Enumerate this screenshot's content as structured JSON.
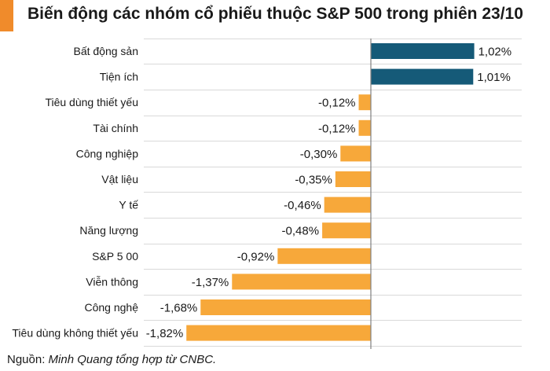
{
  "title": "Biến động các nhóm cổ phiếu thuộc S&P 500 trong phiên 23/10",
  "source_label": "Nguồn:",
  "source_text": "Minh Quang tổng hợp từ CNBC.",
  "colors": {
    "positive": "#155A78",
    "negative": "#F7A83A",
    "accent": "#F08B2B",
    "grid": "#d9d9d9",
    "axis": "#808080"
  },
  "chart_data": {
    "type": "bar",
    "orientation": "horizontal",
    "title": "Biến động các nhóm cổ phiếu thuộc S&P 500 trong phiên 23/10",
    "categories": [
      "Bất động sản",
      "Tiện ích",
      "Tiêu dùng thiết yếu",
      "Tài chính",
      "Công nghiệp",
      "Vật liệu",
      "Y tế",
      "Năng lượng",
      "S&P 5 00",
      "Viễn thông",
      "Công nghệ",
      "Tiêu dùng không thiết yếu"
    ],
    "values": [
      1.02,
      1.01,
      -0.12,
      -0.12,
      -0.3,
      -0.35,
      -0.46,
      -0.48,
      -0.92,
      -1.37,
      -1.68,
      -1.82
    ],
    "labels": [
      "1,02%",
      "1,01%",
      "-0,12%",
      "-0,12%",
      "-0,30%",
      "-0,35%",
      "-0,46%",
      "-0,48%",
      "-0,92%",
      "-1,37%",
      "-1,68%",
      "-1,82%"
    ],
    "unit": "%",
    "xlim": [
      -1.82,
      1.02
    ],
    "grid": true,
    "legend": "none"
  }
}
